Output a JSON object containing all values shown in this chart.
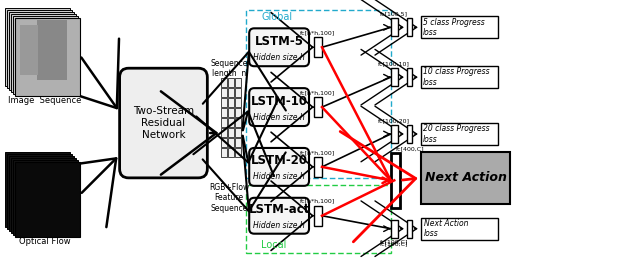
{
  "bg_color": "#ffffff",
  "fig_width": 6.4,
  "fig_height": 2.68,
  "labels": {
    "image_sequence": "Image  Sequence",
    "optical_flow": "Optical Flow",
    "two_stream": "Two-Stream\nResidual\nNetwork",
    "seq_length": "Sequence\nlength  n",
    "rgb_flow": "RGB+Flow\nFeature\nSequence",
    "global_label": "Global",
    "local_label": "Local"
  }
}
